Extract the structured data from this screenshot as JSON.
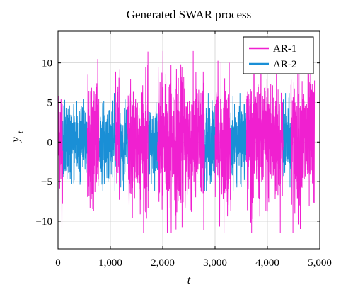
{
  "chart_data": {
    "type": "line",
    "title": "Generated SWAR process",
    "xlabel_main": "t",
    "ylabel_main": "y",
    "ylabel_sub": "t",
    "xlim": [
      0,
      5000
    ],
    "ylim": [
      -13.5,
      14
    ],
    "x_ticks": [
      0,
      1000,
      2000,
      3000,
      4000,
      5000
    ],
    "x_tick_labels": [
      "0",
      "1,000",
      "2,000",
      "3,000",
      "4,000",
      "5,000"
    ],
    "y_ticks": [
      -10,
      -5,
      0,
      5,
      10
    ],
    "y_tick_labels": [
      "−10",
      "−5",
      "0",
      "5",
      "10"
    ],
    "grid": true,
    "legend_position": "top-right",
    "series": [
      {
        "name": "AR-1",
        "color": "#f020d0",
        "amplitude_max": 11.5,
        "segments": [
          [
            0,
            90
          ],
          [
            560,
            780
          ],
          [
            1100,
            1180
          ],
          [
            1330,
            1720
          ],
          [
            1900,
            2800
          ],
          [
            3000,
            3300
          ],
          [
            3600,
            4300
          ],
          [
            4450,
            4900
          ]
        ]
      },
      {
        "name": "AR-2",
        "color": "#1a8fd6",
        "amplitude_max": 6.2,
        "segments": [
          [
            90,
            560
          ],
          [
            780,
            1100
          ],
          [
            1180,
            1330
          ],
          [
            1720,
            1900
          ],
          [
            2800,
            3000
          ],
          [
            3300,
            3600
          ],
          [
            4300,
            4450
          ]
        ]
      }
    ],
    "n_points": 4900
  }
}
